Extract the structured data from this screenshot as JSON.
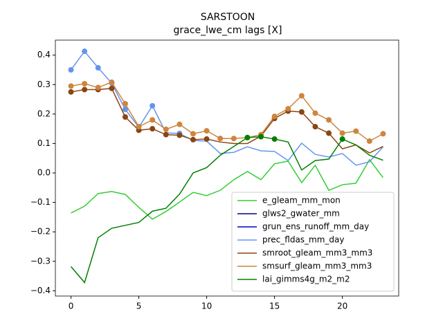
{
  "chart_data": {
    "type": "line",
    "title": "SARSTOON",
    "subtitle": "grace_lwe_cm lags [X]",
    "x": [
      0,
      1,
      2,
      3,
      4,
      5,
      6,
      7,
      8,
      9,
      10,
      11,
      12,
      13,
      14,
      15,
      16,
      17,
      18,
      19,
      20,
      21,
      22,
      23
    ],
    "xlim": [
      -1.15,
      24.15
    ],
    "xticks": [
      0,
      5,
      10,
      15,
      20
    ],
    "ylim": [
      -0.418,
      0.451
    ],
    "yticks": [
      {
        "value": -0.4,
        "label": "−0.4"
      },
      {
        "value": -0.3,
        "label": "−0.3"
      },
      {
        "value": -0.2,
        "label": "−0.2"
      },
      {
        "value": -0.1,
        "label": "−0.1"
      },
      {
        "value": 0,
        "label": "0.0"
      },
      0.1,
      0.2,
      0.3,
      0.4
    ],
    "legend": "lower right",
    "series": [
      {
        "name": "e_gleam_mm_mon",
        "color": "#32cd32",
        "values": [
          -0.136,
          -0.113,
          -0.07,
          -0.063,
          -0.073,
          -0.117,
          -0.157,
          -0.131,
          -0.099,
          -0.066,
          -0.077,
          -0.059,
          -0.023,
          0.005,
          -0.023,
          0.031,
          0.04,
          -0.033,
          0.026,
          -0.059,
          -0.04,
          -0.035,
          0.045,
          -0.016
        ],
        "markers": []
      },
      {
        "name": "glws2_gwater_mm",
        "color": "#000080",
        "values": [
          null,
          null,
          null,
          null,
          null,
          null,
          null,
          null,
          null,
          null,
          null,
          null,
          null,
          null,
          null,
          null,
          null,
          null,
          null,
          null,
          null,
          null,
          null,
          null
        ],
        "markers": []
      },
      {
        "name": "grun_ens_runoff_mm_day",
        "color": "#0000cd",
        "values": [
          null,
          null,
          null,
          null,
          null,
          null,
          null,
          null,
          null,
          null,
          null,
          null,
          null,
          null,
          null,
          null,
          null,
          null,
          null,
          null,
          null,
          null,
          null,
          null
        ],
        "markers": []
      },
      {
        "name": "prec_fldas_mm_day",
        "color": "#6495ed",
        "values": [
          0.35,
          0.413,
          0.357,
          0.305,
          0.216,
          0.155,
          0.228,
          0.136,
          0.134,
          0.11,
          0.108,
          0.066,
          0.07,
          0.089,
          0.075,
          0.073,
          0.042,
          0.101,
          0.063,
          0.054,
          0.066,
          0.026,
          0.038,
          0.089
        ],
        "markers": [
          0,
          1,
          2,
          3,
          4,
          6,
          8
        ]
      },
      {
        "name": "smroot_gleam_mm3_mm3",
        "color": "#8b4513",
        "values": [
          0.275,
          0.283,
          0.283,
          0.287,
          0.19,
          0.145,
          0.15,
          0.13,
          0.128,
          0.113,
          0.115,
          0.105,
          0.1,
          0.1,
          0.125,
          0.185,
          0.21,
          0.207,
          0.157,
          0.135,
          0.082,
          0.095,
          0.068,
          0.09
        ],
        "markers": [
          0,
          1,
          2,
          3,
          4,
          5,
          6,
          7,
          8,
          9,
          10,
          14,
          15,
          16,
          17,
          18,
          19
        ]
      },
      {
        "name": "smsurf_gleam_mm3_mm3",
        "color": "#cd853f",
        "values": [
          0.295,
          0.303,
          0.29,
          0.308,
          0.235,
          0.157,
          0.18,
          0.148,
          0.165,
          0.133,
          0.143,
          0.117,
          0.117,
          0.12,
          0.13,
          0.192,
          0.218,
          0.262,
          0.203,
          0.18,
          0.135,
          0.142,
          0.108,
          0.133
        ],
        "markers": [
          0,
          1,
          2,
          3,
          4,
          5,
          6,
          7,
          8,
          9,
          10,
          11,
          12,
          13,
          14,
          15,
          16,
          17,
          18,
          19,
          20,
          21,
          22,
          23
        ]
      },
      {
        "name": "lai_gimms4g_m2_m2",
        "color": "#008000",
        "values": [
          -0.318,
          -0.372,
          -0.22,
          -0.188,
          -0.178,
          -0.168,
          -0.13,
          -0.12,
          -0.072,
          0.0,
          0.018,
          0.06,
          0.09,
          0.12,
          0.123,
          0.115,
          0.105,
          0.01,
          0.042,
          0.047,
          0.115,
          0.095,
          0.06,
          0.043
        ],
        "markers": [
          13,
          14,
          15,
          20
        ]
      }
    ]
  }
}
